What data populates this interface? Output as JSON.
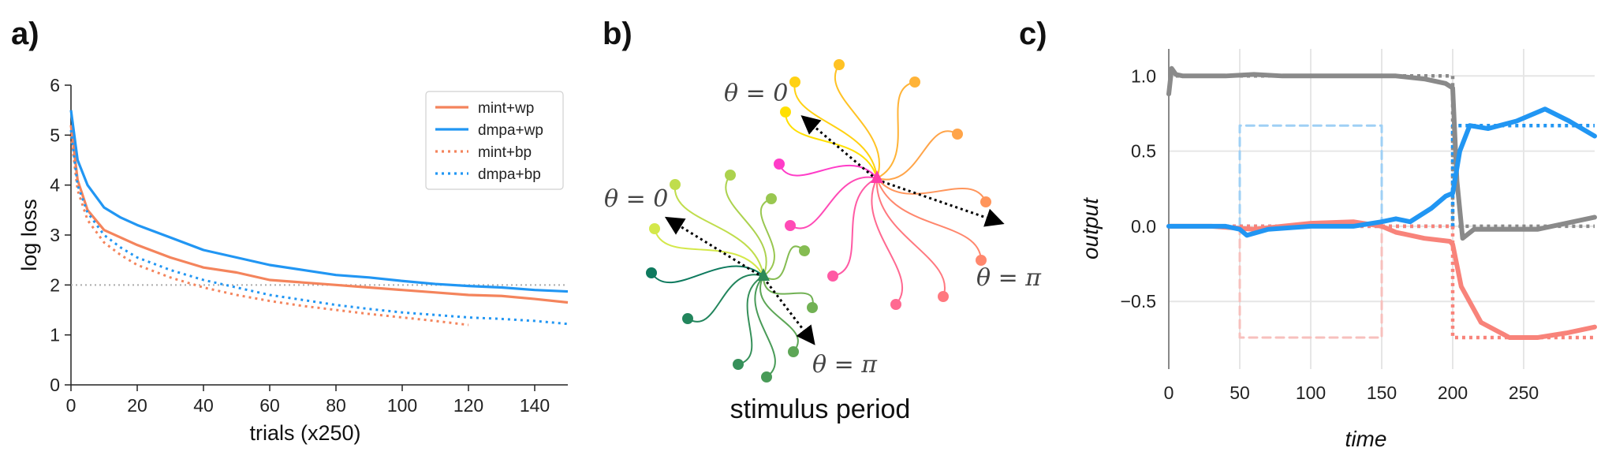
{
  "panels": {
    "a": {
      "label": "a)"
    },
    "b": {
      "label": "b)"
    },
    "c": {
      "label": "c)"
    }
  },
  "colors": {
    "orange": "#f4845c",
    "blue": "#2196f3",
    "gray": "#8a8a8a",
    "salmon": "#f8837a",
    "light_blue": "#9fd0f5",
    "light_salmon": "#f7c0bd",
    "ref_line": "#aaaaaa"
  },
  "chart_data": [
    {
      "type": "line",
      "xlabel": "trials (x250)",
      "ylabel": "log loss",
      "xlim": [
        0,
        150
      ],
      "ylim": [
        0,
        6
      ],
      "xticks": [
        "0",
        "20",
        "40",
        "60",
        "80",
        "100",
        "120",
        "140"
      ],
      "yticks": [
        "0",
        "1",
        "2",
        "3",
        "4",
        "5",
        "6"
      ],
      "reference_line": {
        "y": 2.0,
        "style": "dotted",
        "color": "gray"
      },
      "legend_position": "top-right",
      "series": [
        {
          "name": "mint+wp",
          "style": "solid",
          "color": "orange",
          "x": [
            0,
            2,
            5,
            10,
            15,
            20,
            30,
            40,
            50,
            60,
            70,
            80,
            90,
            100,
            110,
            120,
            130,
            140,
            150
          ],
          "y": [
            5.2,
            4.1,
            3.5,
            3.1,
            2.95,
            2.8,
            2.55,
            2.35,
            2.25,
            2.1,
            2.05,
            2.0,
            1.95,
            1.9,
            1.85,
            1.8,
            1.78,
            1.72,
            1.65
          ]
        },
        {
          "name": "dmpa+wp",
          "style": "solid",
          "color": "blue",
          "x": [
            0,
            2,
            5,
            10,
            15,
            20,
            30,
            40,
            50,
            60,
            70,
            80,
            90,
            100,
            110,
            120,
            130,
            140,
            150
          ],
          "y": [
            5.5,
            4.5,
            4.0,
            3.55,
            3.35,
            3.2,
            2.95,
            2.7,
            2.55,
            2.4,
            2.3,
            2.2,
            2.15,
            2.08,
            2.02,
            1.98,
            1.95,
            1.9,
            1.87
          ]
        },
        {
          "name": "mint+bp",
          "style": "dotted",
          "color": "orange",
          "x": [
            0,
            2,
            5,
            10,
            15,
            20,
            30,
            40,
            50,
            60,
            70,
            80,
            90,
            100,
            110,
            120
          ],
          "y": [
            5.0,
            3.9,
            3.3,
            2.85,
            2.6,
            2.4,
            2.15,
            1.95,
            1.8,
            1.68,
            1.58,
            1.5,
            1.42,
            1.35,
            1.28,
            1.2
          ]
        },
        {
          "name": "dmpa+bp",
          "style": "dotted",
          "color": "blue",
          "x": [
            0,
            2,
            5,
            10,
            15,
            20,
            30,
            40,
            50,
            60,
            70,
            80,
            90,
            100,
            110,
            120,
            130,
            140,
            150
          ],
          "y": [
            5.1,
            4.0,
            3.45,
            3.0,
            2.75,
            2.55,
            2.3,
            2.1,
            1.95,
            1.8,
            1.7,
            1.6,
            1.52,
            1.45,
            1.4,
            1.35,
            1.32,
            1.28,
            1.22
          ]
        }
      ]
    },
    {
      "type": "diagram",
      "caption": "stimulus period",
      "annotations": [
        "θ = 0",
        "θ = π",
        "θ = 0",
        "θ = π"
      ]
    },
    {
      "type": "line",
      "xlabel": "time",
      "ylabel": "output",
      "xlim": [
        0,
        300
      ],
      "ylim": [
        -0.95,
        1.18
      ],
      "xticks": [
        "0",
        "50",
        "100",
        "150",
        "200",
        "250"
      ],
      "yticks": [
        "1.0",
        "0.5",
        "0.0",
        "−0.5"
      ],
      "grid": true,
      "series": [
        {
          "color": "gray",
          "style": "solid",
          "x": [
            0,
            2,
            5,
            10,
            20,
            40,
            60,
            80,
            100,
            120,
            140,
            160,
            180,
            195,
            200,
            203,
            207,
            215,
            230,
            260,
            300
          ],
          "y": [
            0.88,
            1.05,
            1.01,
            1.0,
            1.0,
            1.0,
            1.01,
            1.0,
            1.0,
            1.0,
            1.0,
            1.0,
            0.98,
            0.95,
            0.92,
            0.3,
            -0.08,
            -0.02,
            -0.02,
            -0.02,
            0.06
          ]
        },
        {
          "color": "gray",
          "style": "dotted",
          "x": [
            0,
            200,
            200,
            300
          ],
          "y": [
            1.0,
            1.0,
            0.0,
            0.0
          ]
        },
        {
          "color": "blue",
          "style": "solid",
          "x": [
            0,
            20,
            40,
            50,
            55,
            70,
            100,
            130,
            150,
            160,
            170,
            185,
            195,
            200,
            205,
            212,
            225,
            245,
            265,
            282,
            300
          ],
          "y": [
            0.0,
            0.0,
            0.0,
            -0.02,
            -0.06,
            -0.02,
            0.0,
            0.0,
            0.03,
            0.05,
            0.03,
            0.12,
            0.2,
            0.22,
            0.5,
            0.67,
            0.65,
            0.7,
            0.78,
            0.7,
            0.6
          ]
        },
        {
          "color": "blue",
          "style": "dotted",
          "x": [
            0,
            200,
            200,
            300
          ],
          "y": [
            0.0,
            0.0,
            0.67,
            0.67
          ]
        },
        {
          "color": "salmon",
          "style": "solid",
          "x": [
            0,
            30,
            60,
            80,
            100,
            130,
            150,
            160,
            180,
            198,
            200,
            206,
            220,
            240,
            260,
            280,
            300
          ],
          "y": [
            0.0,
            0.0,
            -0.02,
            0.0,
            0.02,
            0.03,
            0.0,
            -0.04,
            -0.08,
            -0.1,
            -0.12,
            -0.4,
            -0.64,
            -0.74,
            -0.74,
            -0.71,
            -0.67
          ]
        },
        {
          "color": "salmon",
          "style": "dotted",
          "x": [
            0,
            200,
            200,
            300
          ],
          "y": [
            0.0,
            0.0,
            -0.74,
            -0.74
          ]
        },
        {
          "color": "light_blue",
          "style": "dashed",
          "x": [
            50,
            50,
            150,
            150
          ],
          "y": [
            0.0,
            0.67,
            0.67,
            0.0
          ]
        },
        {
          "color": "light_salmon",
          "style": "dashed",
          "x": [
            50,
            50,
            150,
            150
          ],
          "y": [
            0.0,
            -0.74,
            -0.74,
            0.0
          ]
        }
      ]
    }
  ]
}
